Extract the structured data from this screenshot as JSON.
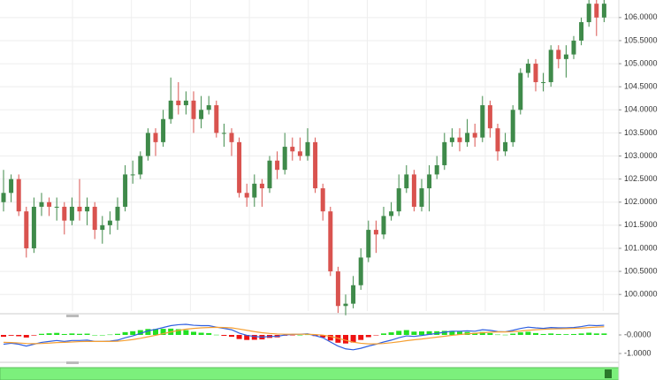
{
  "chart_data": [
    {
      "type": "candlestick",
      "up_color": "#3f8a4a",
      "down_color": "#d9534f",
      "open": [
        102.0,
        102.2,
        102.5,
        101.8,
        101.0,
        101.9,
        102.0,
        101.9,
        101.9,
        101.6,
        101.9,
        101.8,
        101.9,
        101.4,
        101.5,
        101.6,
        101.9,
        102.6,
        102.6,
        103.0,
        103.5,
        103.3,
        103.8,
        104.2,
        104.1,
        104.2,
        103.8,
        104.0,
        104.1,
        103.5,
        103.5,
        103.3,
        102.2,
        102.1,
        102.4,
        102.3,
        102.9,
        102.7,
        103.2,
        103.1,
        103.0,
        103.3,
        102.3,
        101.8,
        100.5,
        99.75,
        99.8,
        100.2,
        100.8,
        101.4,
        101.3,
        101.7,
        101.8,
        102.3,
        102.6,
        101.9,
        102.3,
        102.6,
        102.8,
        103.3,
        103.4,
        103.3,
        103.5,
        103.4,
        104.1,
        103.6,
        103.1,
        103.3,
        104.0,
        104.8,
        105.0,
        104.6,
        104.6,
        105.3,
        105.1,
        105.2,
        105.5,
        105.9,
        106.3,
        106.0
      ],
      "high": [
        102.7,
        102.6,
        102.6,
        101.9,
        102.1,
        102.2,
        102.1,
        102.1,
        102.0,
        102.1,
        102.5,
        102.1,
        102.0,
        101.7,
        101.8,
        102.1,
        102.8,
        102.9,
        103.1,
        103.6,
        103.6,
        104.0,
        104.7,
        104.6,
        104.4,
        104.4,
        104.3,
        104.3,
        104.2,
        103.7,
        103.6,
        103.4,
        102.4,
        102.6,
        102.5,
        103.0,
        103.1,
        103.5,
        103.4,
        103.4,
        103.6,
        103.4,
        102.4,
        101.9,
        100.6,
        100.0,
        100.4,
        101.0,
        101.6,
        101.6,
        101.9,
        102.0,
        102.6,
        102.8,
        102.7,
        102.5,
        102.8,
        103.0,
        103.5,
        103.6,
        103.6,
        103.8,
        103.7,
        104.3,
        104.2,
        103.7,
        103.5,
        104.1,
        104.9,
        105.1,
        105.1,
        104.8,
        105.4,
        105.4,
        105.4,
        105.6,
        106.0,
        106.4,
        106.4,
        106.4
      ],
      "low": [
        101.8,
        102.0,
        101.7,
        100.8,
        100.9,
        101.7,
        101.7,
        101.6,
        101.3,
        101.5,
        101.6,
        101.5,
        101.2,
        101.1,
        101.3,
        101.4,
        101.8,
        102.4,
        102.5,
        102.9,
        103.0,
        103.2,
        103.7,
        103.9,
        103.9,
        103.5,
        103.6,
        103.9,
        103.4,
        103.2,
        103.0,
        102.1,
        101.9,
        101.9,
        101.9,
        102.2,
        102.5,
        102.6,
        102.9,
        102.9,
        102.9,
        102.2,
        101.6,
        100.4,
        99.6,
        99.55,
        99.7,
        100.1,
        100.7,
        100.9,
        101.2,
        101.6,
        101.7,
        102.2,
        101.8,
        101.8,
        101.8,
        102.5,
        102.7,
        103.2,
        103.1,
        103.2,
        103.2,
        103.3,
        103.4,
        102.9,
        103.0,
        103.2,
        103.9,
        104.7,
        104.4,
        104.4,
        104.5,
        104.9,
        104.7,
        105.1,
        105.4,
        105.8,
        105.6,
        105.9
      ],
      "close": [
        102.2,
        102.5,
        101.8,
        101.0,
        101.9,
        102.0,
        101.9,
        101.9,
        101.6,
        101.9,
        101.8,
        101.9,
        101.4,
        101.5,
        101.6,
        101.9,
        102.6,
        102.6,
        103.0,
        103.5,
        103.3,
        103.8,
        104.2,
        104.1,
        104.2,
        103.8,
        104.0,
        104.1,
        103.5,
        103.5,
        103.3,
        102.2,
        102.1,
        102.4,
        102.3,
        102.9,
        102.7,
        103.2,
        103.1,
        103.0,
        103.3,
        102.3,
        101.8,
        100.5,
        99.75,
        99.8,
        100.2,
        100.8,
        101.4,
        101.3,
        101.7,
        101.8,
        102.3,
        102.6,
        101.9,
        102.3,
        102.6,
        102.8,
        103.3,
        103.4,
        103.3,
        103.5,
        103.4,
        104.1,
        103.6,
        103.1,
        103.3,
        104.0,
        104.8,
        105.0,
        104.6,
        104.6,
        105.3,
        105.1,
        105.2,
        105.5,
        105.9,
        106.3,
        106.0,
        106.3
      ],
      "ylim": [
        99.64,
        106.38
      ],
      "yticks": [
        {
          "value": 100,
          "label": "100.0000"
        },
        {
          "value": 100.5,
          "label": "100.5000"
        },
        {
          "value": 101,
          "label": "101.0000"
        },
        {
          "value": 101.5,
          "label": "101.5000"
        },
        {
          "value": 102,
          "label": "102.0000"
        },
        {
          "value": 102.5,
          "label": "102.5000"
        },
        {
          "value": 103,
          "label": "103.0000"
        },
        {
          "value": 103.5,
          "label": "103.5000"
        },
        {
          "value": 104,
          "label": "104.0000"
        },
        {
          "value": 104.5,
          "label": "104.5000"
        },
        {
          "value": 105,
          "label": "105.0000"
        },
        {
          "value": 105.5,
          "label": "105.5000"
        },
        {
          "value": 106,
          "label": "106.0000"
        }
      ],
      "grid": true
    },
    {
      "type": "macd",
      "series": [
        {
          "color": "#2f5fe0",
          "values": [
            -0.5,
            -0.45,
            -0.5,
            -0.6,
            -0.5,
            -0.4,
            -0.35,
            -0.3,
            -0.35,
            -0.3,
            -0.3,
            -0.28,
            -0.35,
            -0.35,
            -0.33,
            -0.28,
            -0.15,
            -0.05,
            0.08,
            0.22,
            0.3,
            0.4,
            0.5,
            0.55,
            0.57,
            0.52,
            0.5,
            0.5,
            0.42,
            0.35,
            0.28,
            0.1,
            -0.02,
            -0.08,
            -0.12,
            -0.08,
            -0.08,
            0.0,
            0.03,
            0.04,
            0.06,
            -0.04,
            -0.15,
            -0.38,
            -0.6,
            -0.75,
            -0.8,
            -0.72,
            -0.6,
            -0.5,
            -0.38,
            -0.28,
            -0.15,
            -0.05,
            -0.08,
            -0.03,
            0.03,
            0.08,
            0.15,
            0.2,
            0.2,
            0.22,
            0.2,
            0.28,
            0.25,
            0.18,
            0.17,
            0.25,
            0.35,
            0.42,
            0.38,
            0.35,
            0.4,
            0.38,
            0.38,
            0.4,
            0.45,
            0.52,
            0.5,
            0.52
          ]
        },
        {
          "color": "#f5a033",
          "values": [
            -0.4,
            -0.41,
            -0.43,
            -0.46,
            -0.47,
            -0.46,
            -0.44,
            -0.41,
            -0.4,
            -0.38,
            -0.36,
            -0.35,
            -0.35,
            -0.35,
            -0.35,
            -0.34,
            -0.3,
            -0.25,
            -0.18,
            -0.1,
            -0.02,
            0.07,
            0.16,
            0.24,
            0.31,
            0.35,
            0.38,
            0.4,
            0.41,
            0.4,
            0.38,
            0.32,
            0.25,
            0.18,
            0.12,
            0.08,
            0.05,
            0.04,
            0.04,
            0.04,
            0.04,
            0.02,
            -0.01,
            -0.08,
            -0.18,
            -0.29,
            -0.39,
            -0.45,
            -0.48,
            -0.48,
            -0.46,
            -0.42,
            -0.37,
            -0.31,
            -0.26,
            -0.22,
            -0.17,
            -0.12,
            -0.07,
            -0.02,
            0.02,
            0.06,
            0.09,
            0.12,
            0.15,
            0.16,
            0.16,
            0.18,
            0.21,
            0.25,
            0.28,
            0.3,
            0.32,
            0.33,
            0.34,
            0.35,
            0.37,
            0.4,
            0.42,
            0.44
          ]
        }
      ],
      "histogram": {
        "up_color": "#22e022",
        "down_color": "#ee1111",
        "values": [
          -0.1,
          -0.04,
          -0.07,
          -0.14,
          -0.03,
          0.06,
          0.09,
          0.11,
          0.05,
          0.08,
          0.06,
          0.07,
          0.0,
          0.0,
          0.02,
          0.06,
          0.15,
          0.2,
          0.26,
          0.32,
          0.32,
          0.33,
          0.34,
          0.31,
          0.26,
          0.17,
          0.12,
          0.1,
          0.01,
          -0.05,
          -0.1,
          -0.22,
          -0.27,
          -0.26,
          -0.24,
          -0.16,
          -0.13,
          -0.04,
          -0.01,
          0.0,
          0.02,
          -0.06,
          -0.14,
          -0.3,
          -0.42,
          -0.46,
          -0.41,
          -0.27,
          -0.12,
          -0.02,
          0.08,
          0.14,
          0.22,
          0.26,
          0.18,
          0.19,
          0.2,
          0.2,
          0.22,
          0.22,
          0.18,
          0.16,
          0.11,
          0.16,
          0.1,
          0.02,
          0.01,
          0.07,
          0.14,
          0.17,
          0.1,
          0.05,
          0.08,
          0.05,
          0.04,
          0.05,
          0.08,
          0.12,
          0.08,
          0.08
        ]
      },
      "ylim": [
        -1.38,
        1.0
      ],
      "yticks": [
        {
          "value": 0,
          "label": "-0.0000"
        },
        {
          "value": -1,
          "label": "-1.0000"
        }
      ]
    }
  ]
}
